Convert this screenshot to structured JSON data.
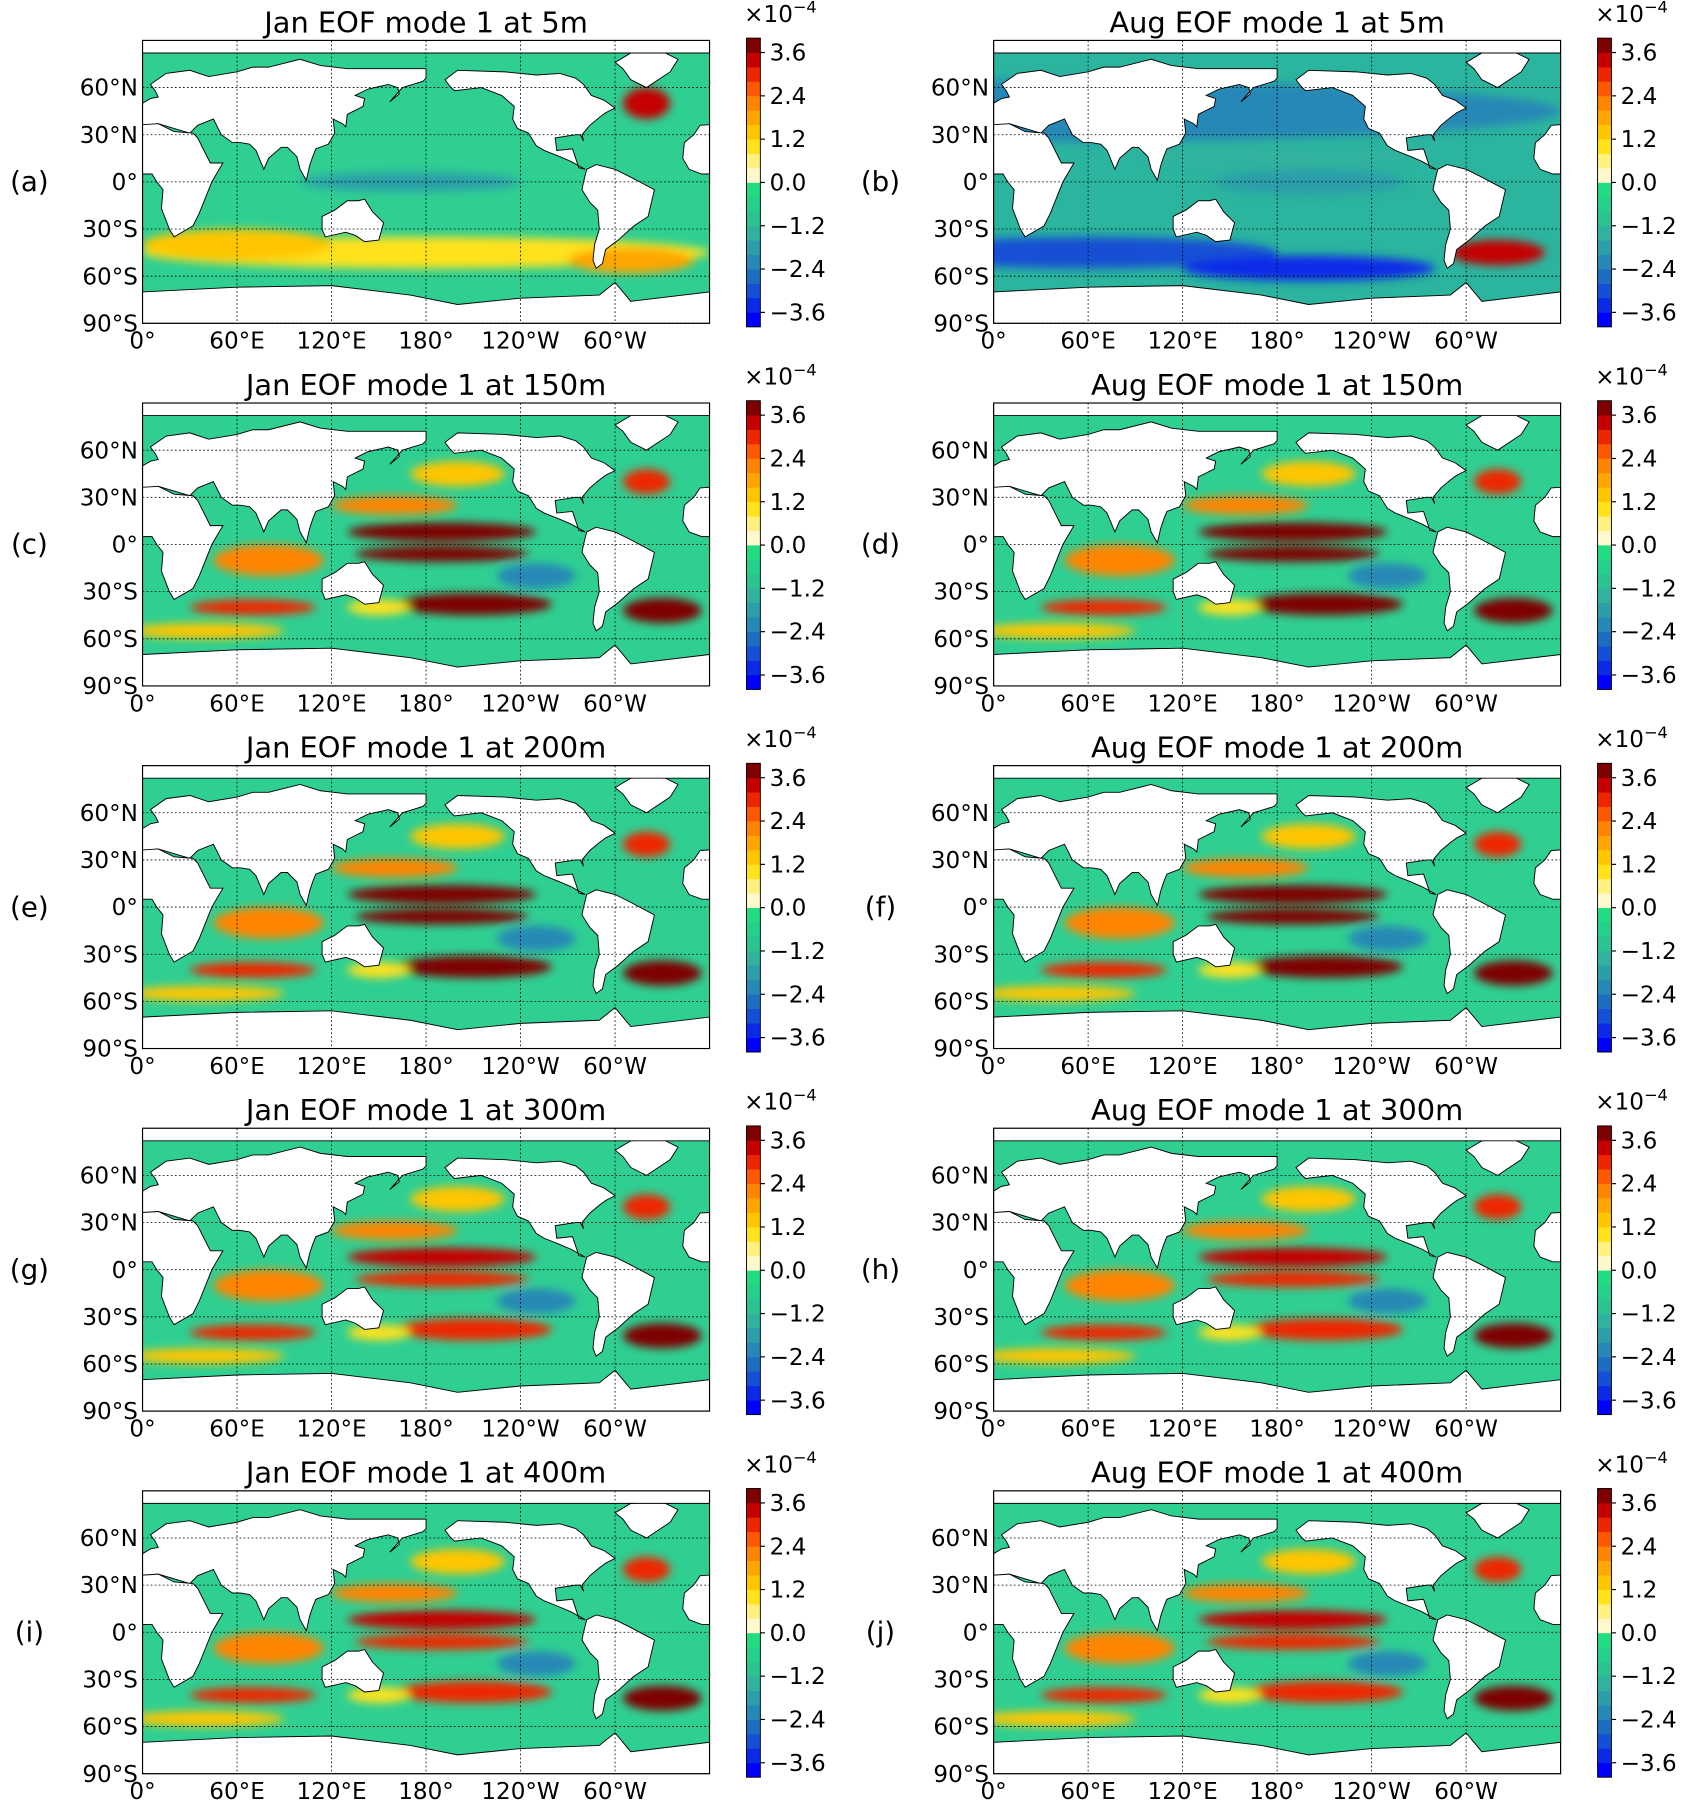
{
  "figure": {
    "panels": [
      {
        "label": "(a)",
        "title": "Jan EOF mode 1 at 5m"
      },
      {
        "label": "(b)",
        "title": "Aug EOF mode 1 at 5m"
      },
      {
        "label": "(c)",
        "title": "Jan EOF mode 1 at 150m"
      },
      {
        "label": "(d)",
        "title": "Aug EOF mode 1 at 150m"
      },
      {
        "label": "(e)",
        "title": "Jan EOF mode 1 at 200m"
      },
      {
        "label": "(f)",
        "title": "Aug EOF mode 1 at 200m"
      },
      {
        "label": "(g)",
        "title": "Jan EOF mode 1 at 300m"
      },
      {
        "label": "(h)",
        "title": "Aug EOF mode 1 at 300m"
      },
      {
        "label": "(i)",
        "title": "Jan EOF mode 1 at 400m"
      },
      {
        "label": "(j)",
        "title": "Aug EOF mode 1 at 400m"
      }
    ],
    "xlim": [
      0,
      360
    ],
    "ylim": [
      -90,
      90
    ],
    "lat_ticks": [
      {
        "value": 60,
        "label": "60°N"
      },
      {
        "value": 30,
        "label": "30°N"
      },
      {
        "value": 0,
        "label": "0°"
      },
      {
        "value": -30,
        "label": "30°S"
      },
      {
        "value": -60,
        "label": "60°S"
      },
      {
        "value": -90,
        "label": "90°S"
      }
    ],
    "lon_ticks": [
      {
        "value": 0,
        "label": "0°"
      },
      {
        "value": 60,
        "label": "60°E"
      },
      {
        "value": 120,
        "label": "120°E"
      },
      {
        "value": 180,
        "label": "180°"
      },
      {
        "value": 240,
        "label": "120°W"
      },
      {
        "value": 300,
        "label": "60°W"
      }
    ],
    "colorbar": {
      "scale": "×10",
      "exponent": "−4",
      "vlim": [
        -4,
        4
      ],
      "ticks": [
        3.6,
        2.4,
        1.2,
        {
          "value": 0,
          "label": "0.0"
        },
        {
          "value": -1.2,
          "label": "−1.2"
        },
        {
          "value": -2.4,
          "label": "−2.4"
        },
        {
          "value": -3.6,
          "label": "−3.6"
        }
      ]
    }
  }
}
